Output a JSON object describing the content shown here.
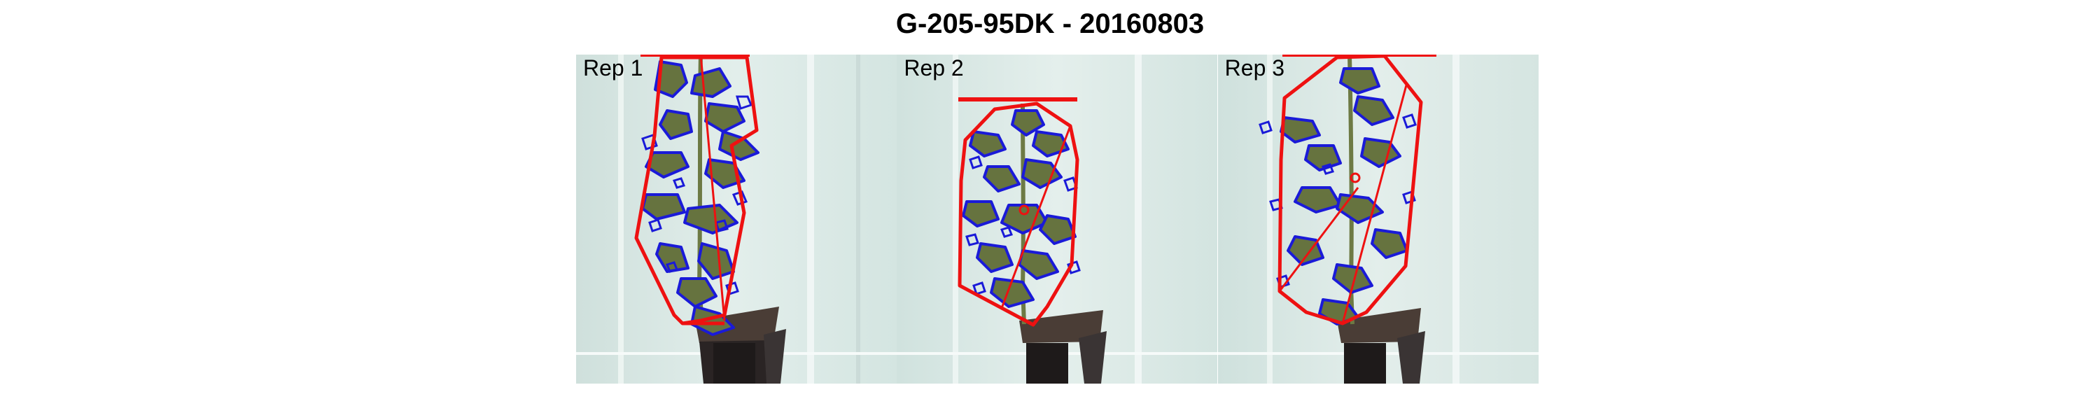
{
  "title": "G-205-95DK - 20160803",
  "panels": [
    {
      "label": "Rep 1"
    },
    {
      "label": "Rep 2"
    },
    {
      "label": "Rep 3"
    }
  ],
  "colors": {
    "background": "#d6e6e2",
    "hull": "#ee1111",
    "contour": "#1a1ad8",
    "leaf": "#66733f",
    "pot": "#3a3030"
  }
}
